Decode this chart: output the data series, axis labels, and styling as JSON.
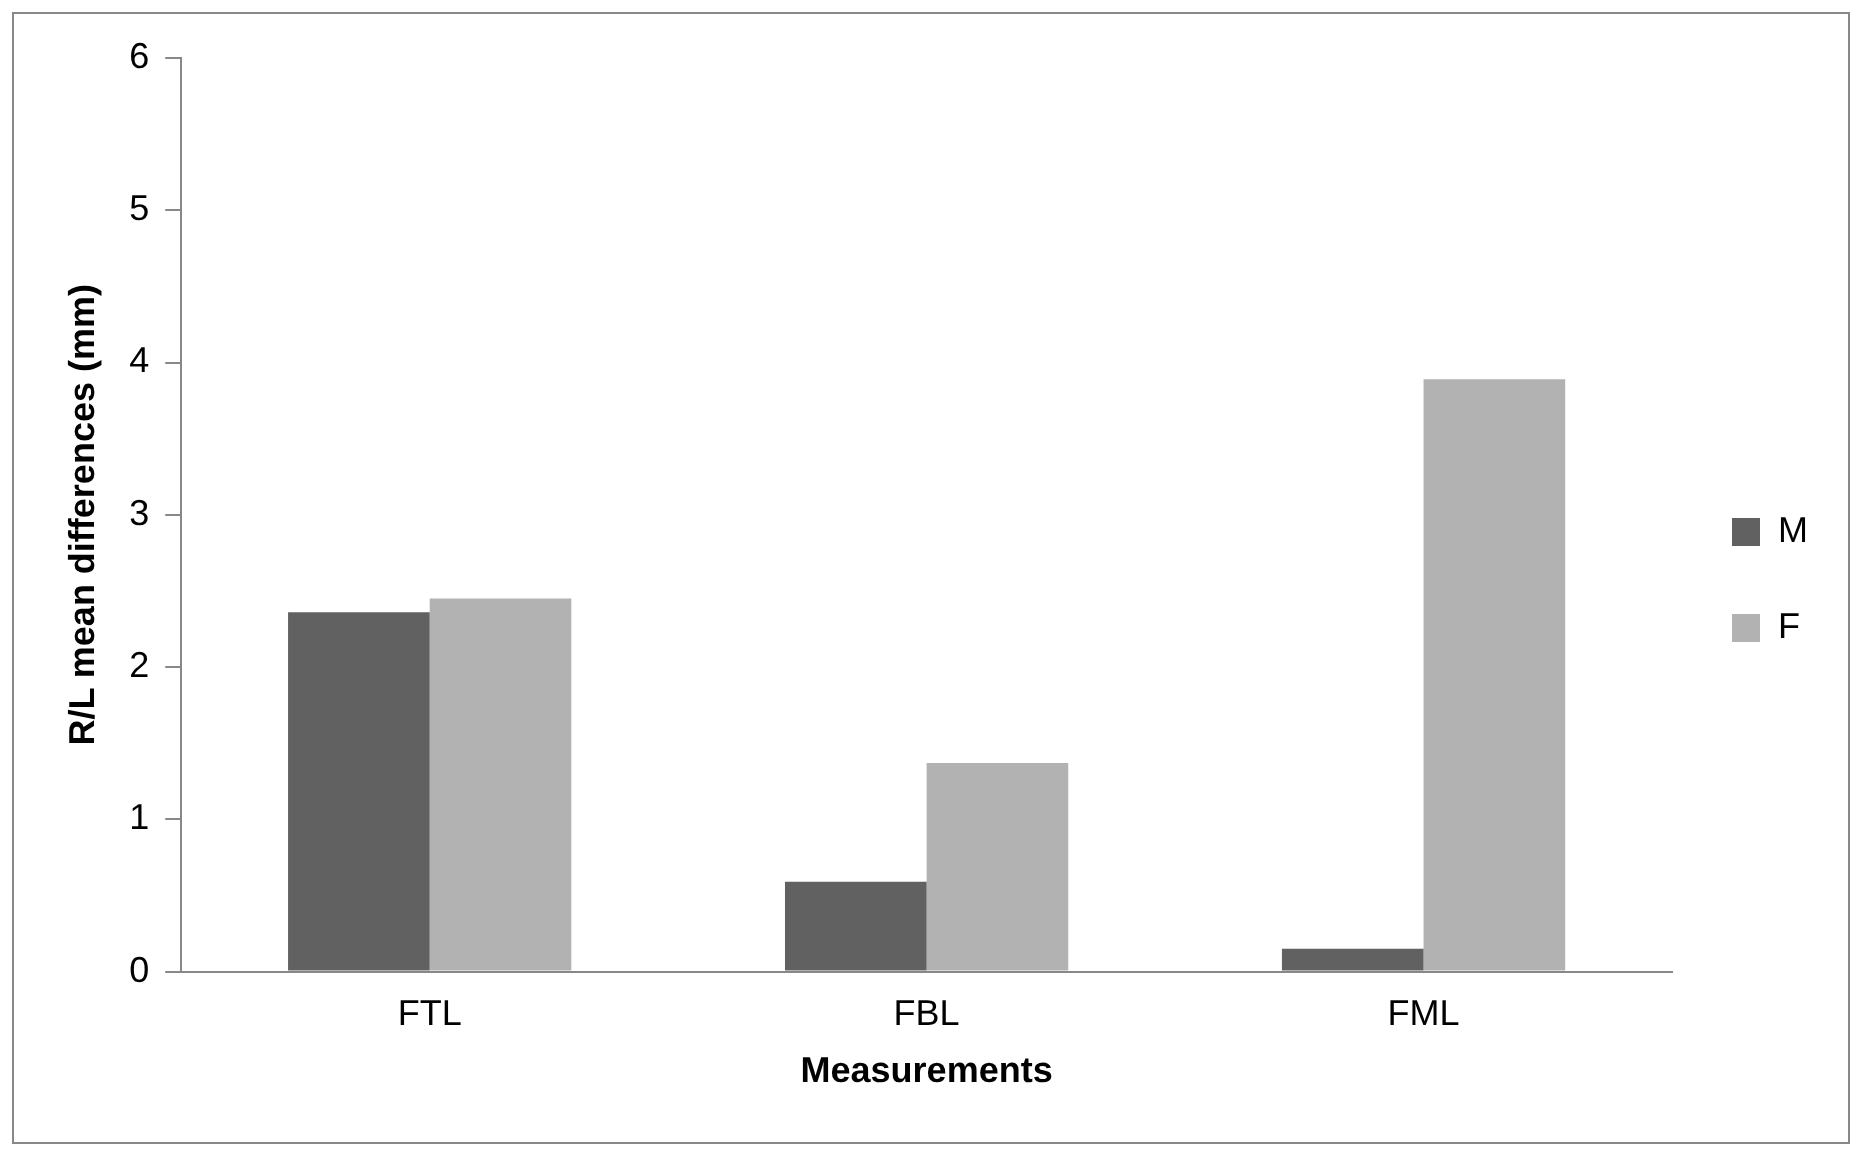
{
  "chart_data": {
    "type": "bar",
    "xlabel": "Measurements",
    "ylabel": "R/L mean differences (mm)",
    "categories": [
      "FTL",
      "FBL",
      "FML"
    ],
    "series": [
      {
        "name": "M",
        "color": "#616161",
        "values": [
          2.36,
          0.59,
          0.15
        ]
      },
      {
        "name": "F",
        "color": "#b2b2b2",
        "values": [
          2.45,
          1.37,
          3.89
        ]
      }
    ],
    "ylim": [
      0,
      6
    ],
    "yticks": [
      0,
      1,
      2,
      3,
      4,
      5,
      6
    ],
    "grid": false,
    "legend": "right"
  }
}
